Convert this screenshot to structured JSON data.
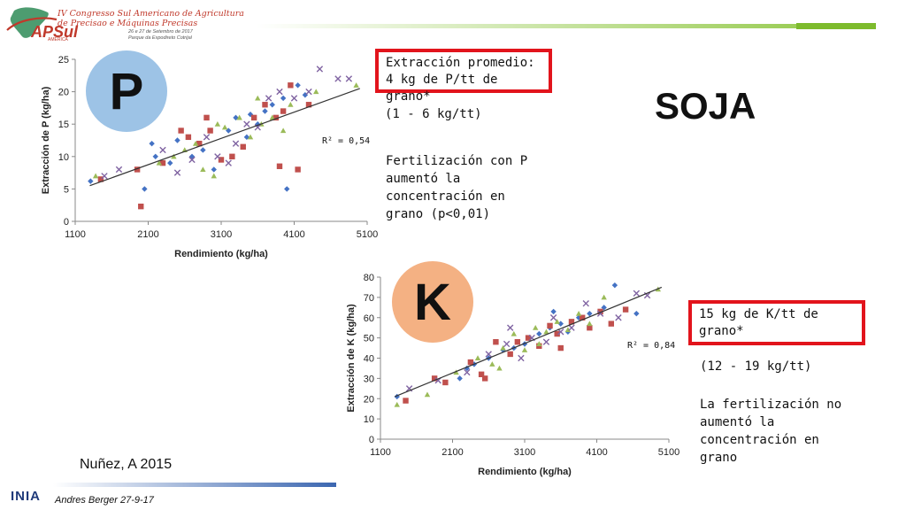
{
  "header": {
    "conference_title_line1": "IV Congresso Sul Americano de Agricultura",
    "conference_title_line2": "de Precisao e Máquinas Precisas",
    "conference_dates": "26 e 27 de Setembro de 2017",
    "conference_venue": "Parque da Expodireto Cotrijal",
    "logo_text": "APSul",
    "logo_sub": "AMÉRICA"
  },
  "slide_title": "SOJA",
  "phosphorus": {
    "badge": "P",
    "box_line1": "Extracción promedio:",
    "box_line2": "4 kg de P/tt de grano*",
    "range": "(1 - 6 kg/tt)",
    "finding": "Fertilización con P\naumentó la\nconcentración en\ngrano (p<0,01)",
    "r2_label": "R² = 0,54"
  },
  "potassium": {
    "badge": "K",
    "box_line1": "15 kg de K/tt de",
    "box_line2": "grano*",
    "range": "(12 - 19 kg/tt)",
    "finding": "La fertilización no\naumentó la\nconcentración en\ngrano",
    "r2_label": "R² = 0,84"
  },
  "footer": {
    "citation": "Nuñez, A 2015",
    "presenter": "Andres Berger 27-9-17",
    "org_logo": "INIA"
  },
  "colors": {
    "series_diamond": "#4472c4",
    "series_square": "#c0504d",
    "series_triangle": "#9bbb59",
    "series_cross": "#8064a2",
    "red_box": "#e2141c",
    "circle_p": "#9dc3e6",
    "circle_k": "#f4b183"
  },
  "chart_data": [
    {
      "type": "scatter",
      "xlabel": "Rendimiento (kg/ha)",
      "ylabel": "Extracción de P (kg/ha)",
      "xlim": [
        1100,
        5100
      ],
      "ylim": [
        0,
        25
      ],
      "x_ticks": [
        1100,
        2100,
        3100,
        4100,
        5100
      ],
      "y_ticks": [
        0,
        5,
        10,
        15,
        20,
        25
      ],
      "grid": false,
      "legend": "none",
      "trendline": {
        "type": "linear",
        "x": [
          1300,
          5000
        ],
        "y": [
          5.5,
          20.5
        ],
        "r2": 0.54
      },
      "series": [
        {
          "marker": "diamond",
          "points": [
            [
              1310,
              6.2
            ],
            [
              2150,
              12
            ],
            [
              2200,
              10
            ],
            [
              2400,
              9
            ],
            [
              2500,
              12.5
            ],
            [
              2700,
              10
            ],
            [
              2850,
              11
            ],
            [
              3000,
              8
            ],
            [
              3200,
              14
            ],
            [
              3300,
              16
            ],
            [
              3450,
              13
            ],
            [
              3600,
              15
            ],
            [
              3700,
              17
            ],
            [
              3800,
              18
            ],
            [
              3950,
              19
            ],
            [
              4000,
              5
            ],
            [
              4150,
              21
            ],
            [
              4250,
              19.5
            ],
            [
              2050,
              5
            ],
            [
              3500,
              16.5
            ]
          ]
        },
        {
          "marker": "square",
          "points": [
            [
              1450,
              6.5
            ],
            [
              1950,
              8
            ],
            [
              2000,
              2.3
            ],
            [
              2300,
              9
            ],
            [
              2550,
              14
            ],
            [
              2650,
              13
            ],
            [
              2800,
              12
            ],
            [
              2950,
              14
            ],
            [
              3100,
              9.5
            ],
            [
              3250,
              10
            ],
            [
              3400,
              11.5
            ],
            [
              3550,
              16
            ],
            [
              3700,
              18
            ],
            [
              3850,
              16
            ],
            [
              3950,
              17
            ],
            [
              4050,
              21
            ],
            [
              4150,
              8
            ],
            [
              4300,
              18
            ],
            [
              3900,
              8.5
            ],
            [
              2900,
              16
            ]
          ]
        },
        {
          "marker": "triangle",
          "points": [
            [
              1380,
              7
            ],
            [
              2250,
              9
            ],
            [
              2450,
              10
            ],
            [
              2600,
              11
            ],
            [
              2750,
              12
            ],
            [
              2850,
              8
            ],
            [
              3050,
              15
            ],
            [
              3150,
              14.5
            ],
            [
              3350,
              16
            ],
            [
              3500,
              13
            ],
            [
              3650,
              15
            ],
            [
              3800,
              16
            ],
            [
              3950,
              14
            ],
            [
              4050,
              18
            ],
            [
              4400,
              20
            ],
            [
              4950,
              21
            ],
            [
              3000,
              7
            ],
            [
              3600,
              19
            ]
          ]
        },
        {
          "marker": "cross",
          "points": [
            [
              1500,
              7
            ],
            [
              1700,
              8
            ],
            [
              2300,
              11
            ],
            [
              2500,
              7.5
            ],
            [
              2700,
              9.5
            ],
            [
              2900,
              13
            ],
            [
              3050,
              10
            ],
            [
              3300,
              12
            ],
            [
              3450,
              15
            ],
            [
              3600,
              14.5
            ],
            [
              3750,
              19
            ],
            [
              3900,
              20
            ],
            [
              4100,
              19
            ],
            [
              4300,
              20
            ],
            [
              4450,
              23.5
            ],
            [
              4700,
              22
            ],
            [
              4850,
              22
            ],
            [
              3200,
              9
            ]
          ]
        }
      ]
    },
    {
      "type": "scatter",
      "xlabel": "Rendimiento (kg/ha)",
      "ylabel": "Extracción de K (kg/ha)",
      "xlim": [
        1100,
        5100
      ],
      "ylim": [
        0,
        80
      ],
      "x_ticks": [
        1100,
        2100,
        3100,
        4100,
        5100
      ],
      "y_ticks": [
        0,
        10,
        20,
        30,
        40,
        50,
        60,
        70,
        80
      ],
      "grid": false,
      "legend": "none",
      "trendline": {
        "type": "linear",
        "x": [
          1300,
          5000
        ],
        "y": [
          21,
          75
        ],
        "r2": 0.84
      },
      "series": [
        {
          "marker": "diamond",
          "points": [
            [
              1330,
              21
            ],
            [
              2200,
              30
            ],
            [
              2400,
              37
            ],
            [
              2600,
              40
            ],
            [
              2800,
              44
            ],
            [
              2950,
              45
            ],
            [
              3100,
              47
            ],
            [
              3300,
              52
            ],
            [
              3450,
              55
            ],
            [
              3600,
              57
            ],
            [
              3700,
              53
            ],
            [
              3850,
              60
            ],
            [
              4000,
              62
            ],
            [
              4200,
              65
            ],
            [
              4350,
              76
            ],
            [
              4650,
              62
            ],
            [
              2300,
              35
            ],
            [
              3500,
              63
            ]
          ]
        },
        {
          "marker": "square",
          "points": [
            [
              1450,
              19
            ],
            [
              1850,
              30
            ],
            [
              2000,
              28
            ],
            [
              2350,
              38
            ],
            [
              2500,
              32
            ],
            [
              2700,
              48
            ],
            [
              2900,
              42
            ],
            [
              3000,
              48
            ],
            [
              3150,
              50
            ],
            [
              3300,
              46
            ],
            [
              3450,
              56
            ],
            [
              3550,
              52
            ],
            [
              3750,
              58
            ],
            [
              3900,
              60
            ],
            [
              4000,
              55
            ],
            [
              4150,
              63
            ],
            [
              4300,
              57
            ],
            [
              4500,
              64
            ],
            [
              2550,
              30
            ],
            [
              3600,
              45
            ]
          ]
        },
        {
          "marker": "triangle",
          "points": [
            [
              1330,
              17
            ],
            [
              1750,
              22
            ],
            [
              2150,
              33
            ],
            [
              2450,
              40
            ],
            [
              2650,
              37
            ],
            [
              2800,
              45
            ],
            [
              2950,
              52
            ],
            [
              3100,
              44
            ],
            [
              3250,
              55
            ],
            [
              3400,
              53
            ],
            [
              3550,
              58
            ],
            [
              3700,
              54
            ],
            [
              3850,
              62
            ],
            [
              4000,
              57
            ],
            [
              4200,
              70
            ],
            [
              4950,
              74
            ],
            [
              2750,
              35
            ],
            [
              3300,
              47
            ]
          ]
        },
        {
          "marker": "cross",
          "points": [
            [
              1500,
              25
            ],
            [
              1900,
              29
            ],
            [
              2300,
              33
            ],
            [
              2600,
              42
            ],
            [
              2850,
              47
            ],
            [
              3050,
              40
            ],
            [
              3200,
              50
            ],
            [
              3400,
              48
            ],
            [
              3600,
              53
            ],
            [
              3750,
              55
            ],
            [
              3950,
              67
            ],
            [
              4150,
              62
            ],
            [
              4400,
              60
            ],
            [
              4650,
              72
            ],
            [
              4800,
              71
            ],
            [
              2900,
              55
            ],
            [
              3500,
              60
            ]
          ]
        }
      ]
    }
  ]
}
